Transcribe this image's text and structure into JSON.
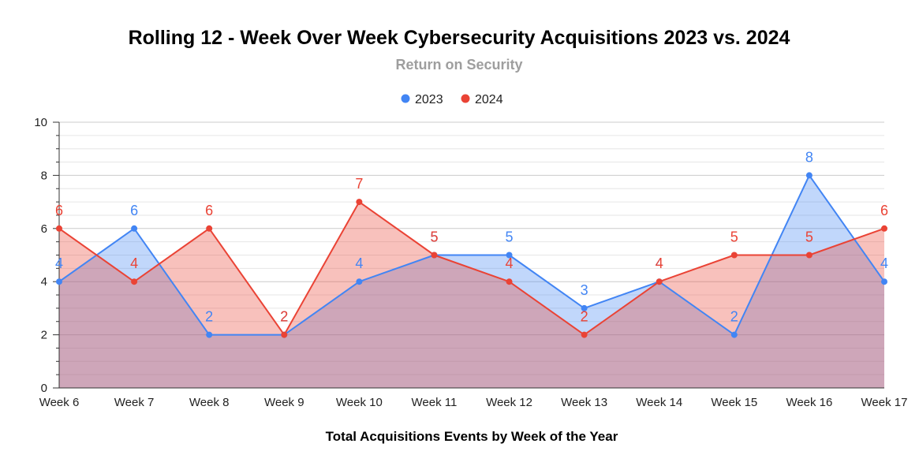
{
  "chart_data": {
    "type": "area",
    "title": "Rolling 12 - Week Over Week Cybersecurity Acquisitions 2023 vs. 2024",
    "subtitle": "Return on Security",
    "xlabel": "Total Acquisitions Events by Week of the Year",
    "ylabel": "",
    "ylim": [
      0,
      10
    ],
    "yticks": [
      "0",
      "2",
      "4",
      "6",
      "8",
      "10"
    ],
    "grid": true,
    "legend_position": "top-center",
    "categories": [
      "Week 6",
      "Week 7",
      "Week 8",
      "Week 9",
      "Week 10",
      "Week 11",
      "Week 12",
      "Week 13",
      "Week 14",
      "Week 15",
      "Week 16",
      "Week 17"
    ],
    "series": [
      {
        "name": "2023",
        "color": "#4285f4",
        "values": [
          4,
          6,
          2,
          2,
          4,
          5,
          5,
          3,
          4,
          2,
          8,
          4
        ]
      },
      {
        "name": "2024",
        "color": "#ea4335",
        "values": [
          6,
          4,
          6,
          2,
          7,
          5,
          4,
          2,
          4,
          5,
          5,
          6
        ]
      }
    ]
  }
}
